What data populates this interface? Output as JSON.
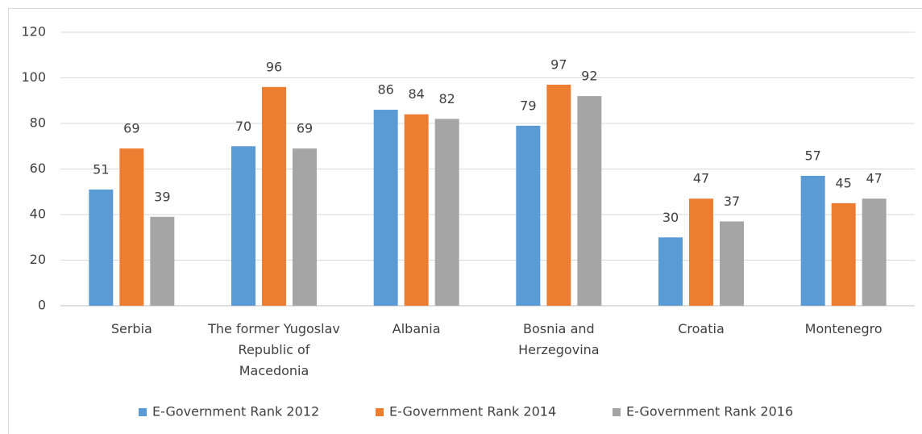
{
  "chart_data": {
    "type": "bar",
    "categories": [
      "Serbia",
      "The former Yugoslav Republic of Macedonia",
      "Albania",
      "Bosnia and Herzegovina",
      "Croatia",
      "Montenegro"
    ],
    "series": [
      {
        "name": "E-Government Rank 2012",
        "color": "#5b9bd5",
        "values": [
          51,
          70,
          86,
          79,
          30,
          57
        ]
      },
      {
        "name": "E-Government Rank 2014",
        "color": "#ed7d31",
        "values": [
          69,
          96,
          84,
          97,
          47,
          45
        ]
      },
      {
        "name": "E-Government Rank 2016",
        "color": "#a5a5a5",
        "values": [
          39,
          69,
          82,
          92,
          37,
          47
        ]
      }
    ],
    "ylim": [
      0,
      120
    ],
    "yticks": [
      0,
      20,
      40,
      60,
      80,
      100,
      120
    ],
    "grid": true,
    "legend": "bottom"
  }
}
